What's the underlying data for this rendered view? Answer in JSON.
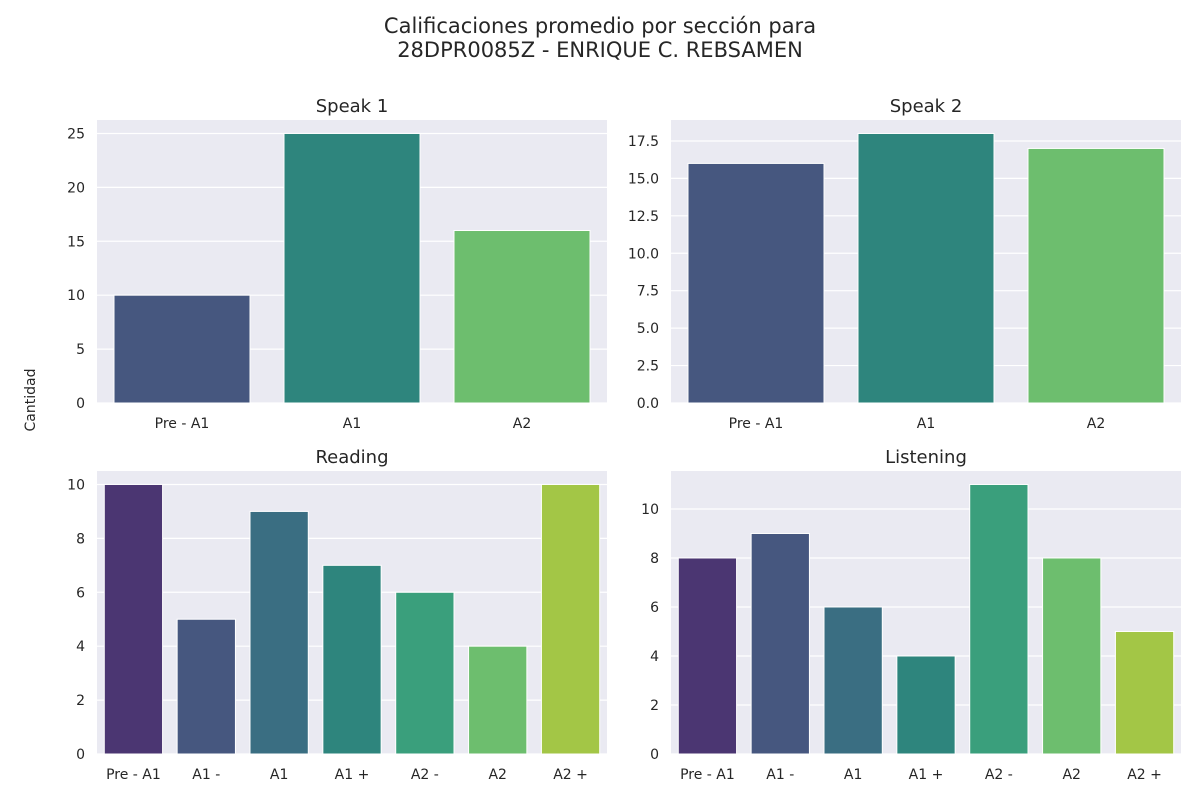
{
  "figure": {
    "title_line1": "Calificaciones promedio por sección para",
    "title_line2": "28DPR0085Z - ENRIQUE C. REBSAMEN",
    "ylabel": "Cantidad",
    "background": "#eaeaf2",
    "grid_color": "#ffffff"
  },
  "chart_data": [
    {
      "type": "bar",
      "title": "Speak 1",
      "categories": [
        "Pre - A1",
        "A1",
        "A2"
      ],
      "values": [
        10,
        25,
        16
      ],
      "colors": [
        "#46577f",
        "#2e857d",
        "#6dbe6e"
      ],
      "ylim": [
        0,
        26.25
      ],
      "yticks": [
        0,
        5,
        10,
        15,
        20,
        25
      ],
      "ytick_labels": [
        "0",
        "5",
        "10",
        "15",
        "20",
        "25"
      ],
      "grid": true
    },
    {
      "type": "bar",
      "title": "Speak 2",
      "categories": [
        "Pre - A1",
        "A1",
        "A2"
      ],
      "values": [
        16,
        18,
        17
      ],
      "colors": [
        "#46577f",
        "#2e857d",
        "#6dbe6e"
      ],
      "ylim": [
        0,
        18.9
      ],
      "yticks": [
        0,
        2.5,
        5,
        7.5,
        10,
        12.5,
        15,
        17.5
      ],
      "ytick_labels": [
        "0.0",
        "2.5",
        "5.0",
        "7.5",
        "10.0",
        "12.5",
        "15.0",
        "17.5"
      ],
      "grid": true
    },
    {
      "type": "bar",
      "title": "Reading",
      "categories": [
        "Pre - A1",
        "A1 -",
        "A1",
        "A1 +",
        "A2 -",
        "A2",
        "A2 +"
      ],
      "values": [
        10,
        5,
        9,
        7,
        6,
        4,
        10
      ],
      "colors": [
        "#4b3672",
        "#46577f",
        "#3a6e82",
        "#2e857d",
        "#3a9f7c",
        "#6dbe6e",
        "#a3c646"
      ],
      "ylim": [
        0,
        10.5
      ],
      "yticks": [
        0,
        2,
        4,
        6,
        8,
        10
      ],
      "ytick_labels": [
        "0",
        "2",
        "4",
        "6",
        "8",
        "10"
      ],
      "grid": true
    },
    {
      "type": "bar",
      "title": "Listening",
      "categories": [
        "Pre - A1",
        "A1 -",
        "A1",
        "A1 +",
        "A2 -",
        "A2",
        "A2 +"
      ],
      "values": [
        8,
        9,
        6,
        4,
        11,
        8,
        5
      ],
      "colors": [
        "#4b3672",
        "#46577f",
        "#3a6e82",
        "#2e857d",
        "#3a9f7c",
        "#6dbe6e",
        "#a3c646"
      ],
      "ylim": [
        0,
        11.55
      ],
      "yticks": [
        0,
        2,
        4,
        6,
        8,
        10
      ],
      "ytick_labels": [
        "0",
        "2",
        "4",
        "6",
        "8",
        "10"
      ],
      "grid": true
    }
  ]
}
